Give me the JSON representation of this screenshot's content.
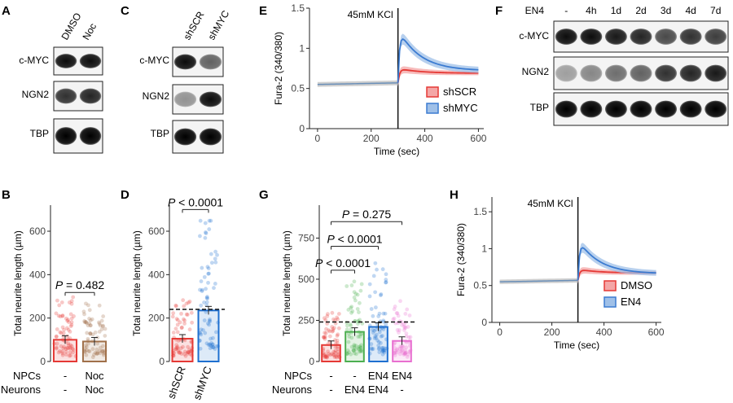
{
  "panels": {
    "A": {
      "letter": "A",
      "lanes": [
        "DMSO",
        "Noc"
      ],
      "rows": [
        "c-MYC",
        "NGN2",
        "TBP"
      ]
    },
    "C": {
      "letter": "C",
      "lanes": [
        "shSCR",
        "shMYC"
      ],
      "rows": [
        "c-MYC",
        "NGN2",
        "TBP"
      ]
    },
    "F": {
      "letter": "F",
      "treatment": "EN4",
      "lanes": [
        "-",
        "4h",
        "1d",
        "2d",
        "3d",
        "4d",
        "7d"
      ],
      "rows": [
        "c-MYC",
        "NGN2",
        "TBP"
      ],
      "band_intensity": {
        "c-MYC": [
          0.95,
          0.95,
          0.9,
          0.85,
          0.7,
          0.8,
          0.75
        ],
        "NGN2": [
          0.35,
          0.45,
          0.55,
          0.6,
          0.8,
          0.85,
          0.9
        ],
        "TBP": [
          1.0,
          1.0,
          1.0,
          1.0,
          1.0,
          1.0,
          1.0
        ]
      }
    }
  },
  "chart_data": [
    {
      "panel": "B",
      "type": "bar",
      "ylabel": "Total neurite length (µm)",
      "ylim": [
        0,
        720
      ],
      "yticks": [
        0,
        200,
        400,
        600
      ],
      "categories": [
        "NPCs -/Neurons -",
        "NPCs Noc/Neurons Noc"
      ],
      "values": [
        100,
        92
      ],
      "colors": [
        "#e53935",
        "#a0704a"
      ],
      "row_labels": [
        "NPCs",
        "Neurons"
      ],
      "x_rows": [
        [
          "-",
          "Noc"
        ],
        [
          "-",
          "Noc"
        ]
      ],
      "annotation": {
        "p_italic": "P",
        "p_text": " = 0.482",
        "from": 0,
        "to": 1,
        "y": 318
      }
    },
    {
      "panel": "D",
      "type": "bar",
      "ylabel": "Total neurite length (µm)",
      "ylim": [
        0,
        720
      ],
      "yticks": [
        0,
        200,
        400,
        600
      ],
      "categories": [
        "shSCR",
        "shMYC"
      ],
      "values": [
        105,
        235
      ],
      "colors": [
        "#e53935",
        "#1e6fd0"
      ],
      "reference_line": 240,
      "annotation": {
        "p_italic": "P",
        "p_text": " < 0.0001",
        "from": 0,
        "to": 1,
        "y": 700
      }
    },
    {
      "panel": "G",
      "type": "bar",
      "ylabel": "Total neurite length (µm)",
      "ylim": [
        0,
        950
      ],
      "yticks": [
        0,
        250,
        500,
        750
      ],
      "categories": [
        "1",
        "2",
        "3",
        "4"
      ],
      "values": [
        100,
        180,
        210,
        125
      ],
      "colors": [
        "#e53935",
        "#4caf50",
        "#1e6fd0",
        "#e86fd0"
      ],
      "reference_line": 240,
      "row_labels": [
        "NPCs",
        "Neurons"
      ],
      "x_rows": [
        [
          "-",
          "-",
          "EN4",
          "EN4"
        ],
        [
          "-",
          "EN4",
          "EN4",
          "-"
        ]
      ],
      "annotations": [
        {
          "p_italic": "P",
          "p_text": " = 0.275",
          "from": 0,
          "to": 3,
          "y": 850
        },
        {
          "p_italic": "P",
          "p_text": " < 0.0001",
          "from": 0,
          "to": 2,
          "y": 700
        },
        {
          "p_italic": "P",
          "p_text": " < 0.0001",
          "from": 0,
          "to": 1,
          "y": 555
        }
      ]
    },
    {
      "panel": "E",
      "type": "line",
      "ylabel": "Fura-2 (340/380)",
      "xlabel": "Time (sec)",
      "xlim": [
        -30,
        620
      ],
      "ylim": [
        0,
        1.5
      ],
      "xticks": [
        0,
        200,
        400,
        600
      ],
      "yticks": [
        0,
        0.5,
        1.0,
        1.5
      ],
      "stimulus": {
        "label": "45mM KCl",
        "x": 300
      },
      "baseline": 0.55,
      "series": [
        {
          "name": "shSCR",
          "color": "#e53935",
          "band": "#f4a6a6",
          "peak": 0.75,
          "plateau": 0.69,
          "err": 0.04
        },
        {
          "name": "shMYC",
          "color": "#3b7bd1",
          "band": "#9fc0e8",
          "peak": 1.25,
          "plateau": 0.72,
          "err": 0.06
        }
      ],
      "legend": "bottom-right"
    },
    {
      "panel": "H",
      "type": "line",
      "ylabel": "Fura-2 (340/380)",
      "xlabel": "Time (sec)",
      "xlim": [
        -30,
        620
      ],
      "ylim": [
        0,
        1.7
      ],
      "xticks": [
        0,
        200,
        400,
        600
      ],
      "yticks": [
        0,
        0.5,
        1.0,
        1.5
      ],
      "stimulus": {
        "label": "45mM KCl",
        "x": 300
      },
      "baseline": 0.55,
      "series": [
        {
          "name": "DMSO",
          "color": "#e53935",
          "band": "#f4a6a6",
          "peak": 0.72,
          "plateau": 0.67,
          "err": 0.04
        },
        {
          "name": "EN4",
          "color": "#3b7bd1",
          "band": "#9fc0e8",
          "peak": 1.13,
          "plateau": 0.66,
          "err": 0.06
        }
      ],
      "legend": "bottom-right"
    }
  ],
  "letters": {
    "B": "B",
    "D": "D",
    "E": "E",
    "G": "G",
    "H": "H"
  }
}
